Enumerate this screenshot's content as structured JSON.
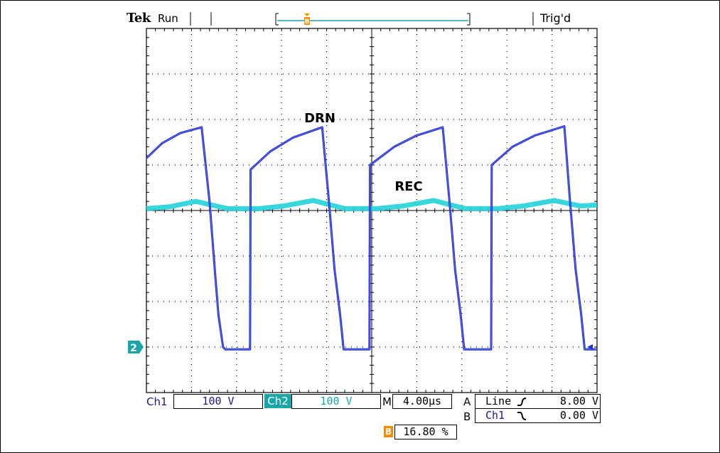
{
  "header": {
    "brand": "Tek",
    "run_state": "Run",
    "trigger_state": "Trig'd",
    "record_marker": "B"
  },
  "trace_labels": {
    "drn": "DRN",
    "rec": "REC"
  },
  "channel_marker": "2",
  "footer": {
    "ch1_label": "Ch1",
    "ch1_scale": "100 V",
    "ch2_label": "Ch2",
    "ch2_scale": "100 V",
    "time_prefix": "M",
    "timebase": "4.00µs",
    "trig_a_label": "A",
    "trig_a_source": "Line",
    "trig_a_slope": "rising",
    "trig_a_level": "8.00 V",
    "trig_b_label": "B",
    "trig_b_source": "Ch1",
    "trig_b_slope": "falling",
    "trig_b_level": "0.00 V",
    "position_marker": "B",
    "position": "16.80 %"
  },
  "colors": {
    "ch1": "#1f2ed6",
    "ch2": "#22d3d9",
    "accent": "#ff8a00",
    "ch2_badge": "#1aa5a8",
    "ch1_text": "#1a1a8c",
    "grid": "#000000"
  },
  "chart_data": {
    "type": "line",
    "grid_divisions": {
      "x": 10,
      "y": 8
    },
    "units": {
      "x": "µs",
      "y": "div"
    },
    "xlim": [
      0,
      40
    ],
    "ylim": [
      -4,
      4
    ],
    "series": [
      {
        "name": "DRN",
        "color": "#1f2ed6",
        "points": [
          [
            0,
            1.15
          ],
          [
            1.4,
            1.48
          ],
          [
            3.0,
            1.7
          ],
          [
            4.9,
            1.83
          ],
          [
            5.6,
            0.2
          ],
          [
            6.1,
            -1.4
          ],
          [
            6.4,
            -2.3
          ],
          [
            6.8,
            -3.0
          ],
          [
            7.0,
            -3.05
          ],
          [
            9.2,
            -3.05
          ],
          [
            9.25,
            0.9
          ],
          [
            11.0,
            1.3
          ],
          [
            13.0,
            1.6
          ],
          [
            15.6,
            1.83
          ],
          [
            16.2,
            0.2
          ],
          [
            16.7,
            -1.3
          ],
          [
            17.2,
            -2.3
          ],
          [
            17.5,
            -3.05
          ],
          [
            19.8,
            -3.05
          ],
          [
            19.85,
            1.0
          ],
          [
            22.0,
            1.4
          ],
          [
            24.0,
            1.65
          ],
          [
            26.3,
            1.83
          ],
          [
            26.9,
            0.2
          ],
          [
            27.4,
            -1.3
          ],
          [
            27.9,
            -2.3
          ],
          [
            28.2,
            -3.05
          ],
          [
            30.6,
            -3.05
          ],
          [
            30.65,
            1.0
          ],
          [
            32.5,
            1.4
          ],
          [
            34.5,
            1.65
          ],
          [
            37.1,
            1.85
          ],
          [
            37.6,
            0.2
          ],
          [
            38.1,
            -1.3
          ],
          [
            38.6,
            -2.3
          ],
          [
            38.9,
            -3.05
          ],
          [
            40,
            -3.05
          ]
        ]
      },
      {
        "name": "REC",
        "color": "#22d3d9",
        "points": [
          [
            0,
            0.04
          ],
          [
            2.0,
            0.08
          ],
          [
            4.4,
            0.2
          ],
          [
            7.2,
            0.04
          ],
          [
            10.0,
            0.04
          ],
          [
            12.2,
            0.1
          ],
          [
            14.8,
            0.22
          ],
          [
            17.6,
            0.04
          ],
          [
            20.5,
            0.04
          ],
          [
            22.8,
            0.1
          ],
          [
            25.5,
            0.22
          ],
          [
            28.3,
            0.04
          ],
          [
            31.2,
            0.04
          ],
          [
            33.5,
            0.1
          ],
          [
            36.2,
            0.22
          ],
          [
            38.5,
            0.1
          ],
          [
            40,
            0.12
          ]
        ]
      }
    ]
  }
}
